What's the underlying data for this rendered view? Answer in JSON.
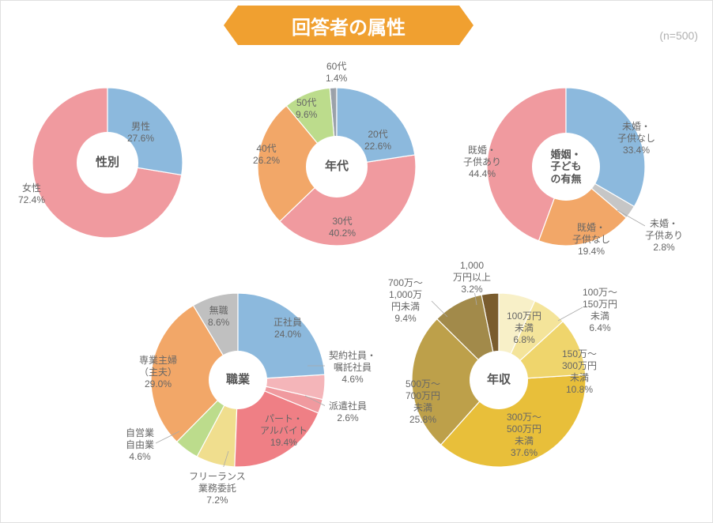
{
  "title": "回答者の属性",
  "sample_note": "(n=500)",
  "banner_color": "#f0a030",
  "text_color": "#666666",
  "background_color": "#ffffff",
  "charts": {
    "gender": {
      "type": "pie",
      "center_label": "性別",
      "slices": [
        {
          "label": "男性",
          "value": 27.6,
          "color": "#8cb9dd"
        },
        {
          "label": "女性",
          "value": 72.4,
          "color": "#f09a9f"
        }
      ],
      "inner_radius_ratio": 0.44
    },
    "age": {
      "type": "pie",
      "center_label": "年代",
      "slices": [
        {
          "label": "20代",
          "value": 22.6,
          "color": "#8cb9dd"
        },
        {
          "label": "30代",
          "value": 40.2,
          "color": "#f09a9f"
        },
        {
          "label": "40代",
          "value": 26.2,
          "color": "#f2a768"
        },
        {
          "label": "50代",
          "value": 9.6,
          "color": "#bcdc8c"
        },
        {
          "label": "60代",
          "value": 1.4,
          "color": "#9aa1aa"
        }
      ],
      "inner_radius_ratio": 0.44
    },
    "marital": {
      "type": "pie",
      "center_label": "婚姻・\n子ども\nの有無",
      "slices": [
        {
          "label": "未婚・\n子供なし",
          "value": 33.4,
          "color": "#8cb9dd"
        },
        {
          "label": "未婚・\n子供あり",
          "value": 2.8,
          "color": "#c6c6c6"
        },
        {
          "label": "既婚・\n子供なし",
          "value": 19.4,
          "color": "#f2a768"
        },
        {
          "label": "既婚・\n子供あり",
          "value": 44.4,
          "color": "#f09a9f"
        }
      ],
      "inner_radius_ratio": 0.44
    },
    "occupation": {
      "type": "pie",
      "center_label": "職業",
      "slices": [
        {
          "label": "正社員",
          "value": 24.0,
          "color": "#8cb9dd"
        },
        {
          "label": "契約社員・\n嘱託社員",
          "value": 4.6,
          "color": "#f4b5b9"
        },
        {
          "label": "派遣社員",
          "value": 2.6,
          "color": "#f09a9f"
        },
        {
          "label": "パート・\nアルバイト",
          "value": 19.4,
          "color": "#ef7f85"
        },
        {
          "label": "フリーランス\n業務委託",
          "value": 7.2,
          "color": "#f0de8e"
        },
        {
          "label": "自営業\n自由業",
          "value": 4.6,
          "color": "#bcdc8c"
        },
        {
          "label": "専業主婦\n（主夫）",
          "value": 29.0,
          "color": "#f2a768"
        },
        {
          "label": "無職",
          "value": 8.6,
          "color": "#c0c0c0"
        }
      ],
      "inner_radius_ratio": 0.36
    },
    "income": {
      "type": "pie",
      "center_label": "年収",
      "slices": [
        {
          "label": "100万円\n未満",
          "value": 6.8,
          "color": "#f8f0c8"
        },
        {
          "label": "100万～\n150万円\n未満",
          "value": 6.4,
          "color": "#f4e49a"
        },
        {
          "label": "150万～\n300万円\n未満",
          "value": 10.8,
          "color": "#efd56c"
        },
        {
          "label": "300万～\n500万円\n未満",
          "value": 37.6,
          "color": "#e8bf3a"
        },
        {
          "label": "500万～\n700万円\n未満",
          "value": 25.8,
          "color": "#bda04a"
        },
        {
          "label": "700万～\n1,000万\n円未満",
          "value": 9.4,
          "color": "#a28a4a"
        },
        {
          "label": "1,000\n万円以上",
          "value": 3.2,
          "color": "#7a5c2e"
        }
      ],
      "inner_radius_ratio": 0.36
    }
  }
}
